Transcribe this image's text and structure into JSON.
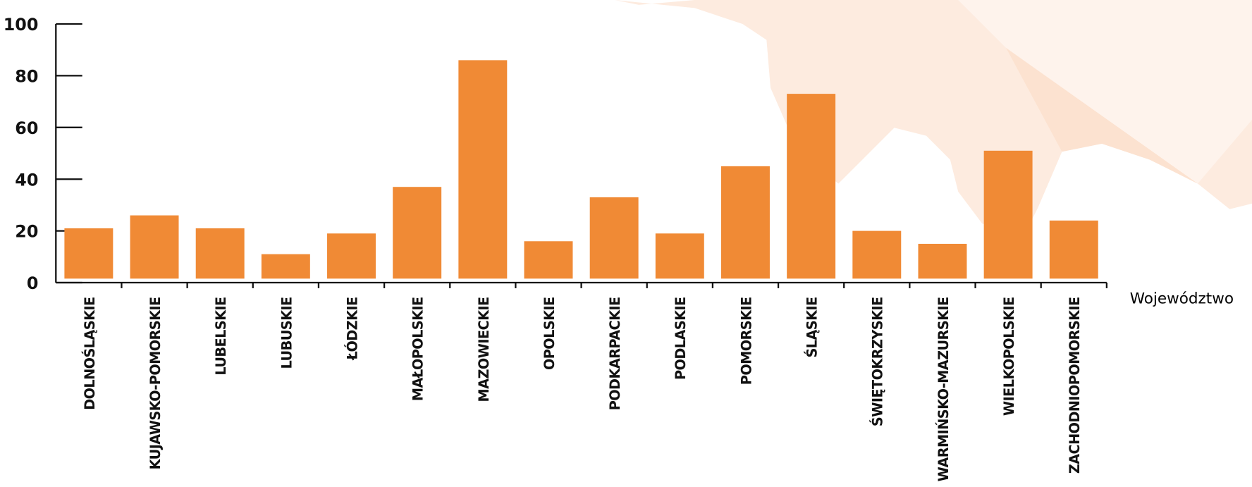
{
  "chart_data": {
    "type": "bar",
    "x_label": "Województwo",
    "categories": [
      "DOLNOŚLĄSKIE",
      "KUJAWSKO-POMORSKIE",
      "LUBELSKIE",
      "LUBUSKIE",
      "ŁÓDZKIE",
      "MAŁOPOLSKIE",
      "MAZOWIECKIE",
      "OPOLSKIE",
      "PODKARPACKIE",
      "PODLASKIE",
      "POMORSKIE",
      "ŚLĄSKIE",
      "ŚWIĘTOKRZYSKIE",
      "WARMIŃSKO-MAZURSKIE",
      "WIELKOPOLSKIE",
      "ZACHODNIOPOMORSKIE"
    ],
    "values": [
      21,
      26,
      21,
      11,
      19,
      37,
      86,
      16,
      33,
      19,
      45,
      73,
      20,
      15,
      51,
      24
    ],
    "color": "#f08a35",
    "ylim": [
      0,
      100
    ],
    "yticks": [
      0,
      20,
      40,
      60,
      80,
      100
    ]
  }
}
